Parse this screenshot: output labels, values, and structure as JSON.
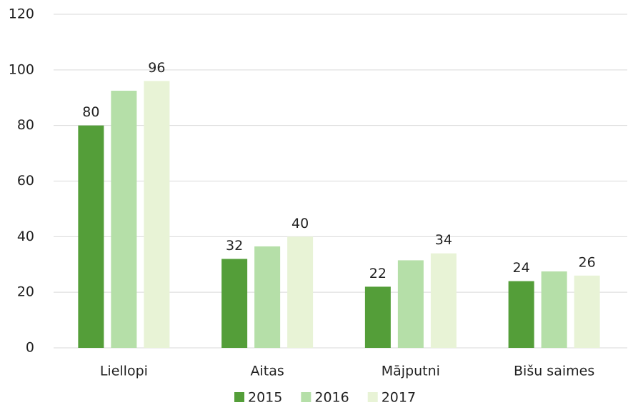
{
  "chart_data": {
    "type": "bar",
    "categories": [
      "Liellopi",
      "Aitas",
      "Mājputni",
      "Bišu saimes"
    ],
    "series": [
      {
        "name": "2015",
        "color": "#549e39",
        "values": [
          80,
          32,
          22,
          24
        ],
        "data_labels": true
      },
      {
        "name": "2016",
        "color": "#b5dfa8",
        "values": [
          92.5,
          36.5,
          31.5,
          27.5
        ],
        "data_labels": false
      },
      {
        "name": "2017",
        "color": "#e8f3d6",
        "values": [
          96,
          40,
          34,
          26
        ],
        "data_labels": true
      }
    ],
    "ylim": [
      0,
      120
    ],
    "yticks": [
      0,
      20,
      40,
      60,
      80,
      100,
      120
    ],
    "grid": true,
    "legend": "bottom"
  }
}
